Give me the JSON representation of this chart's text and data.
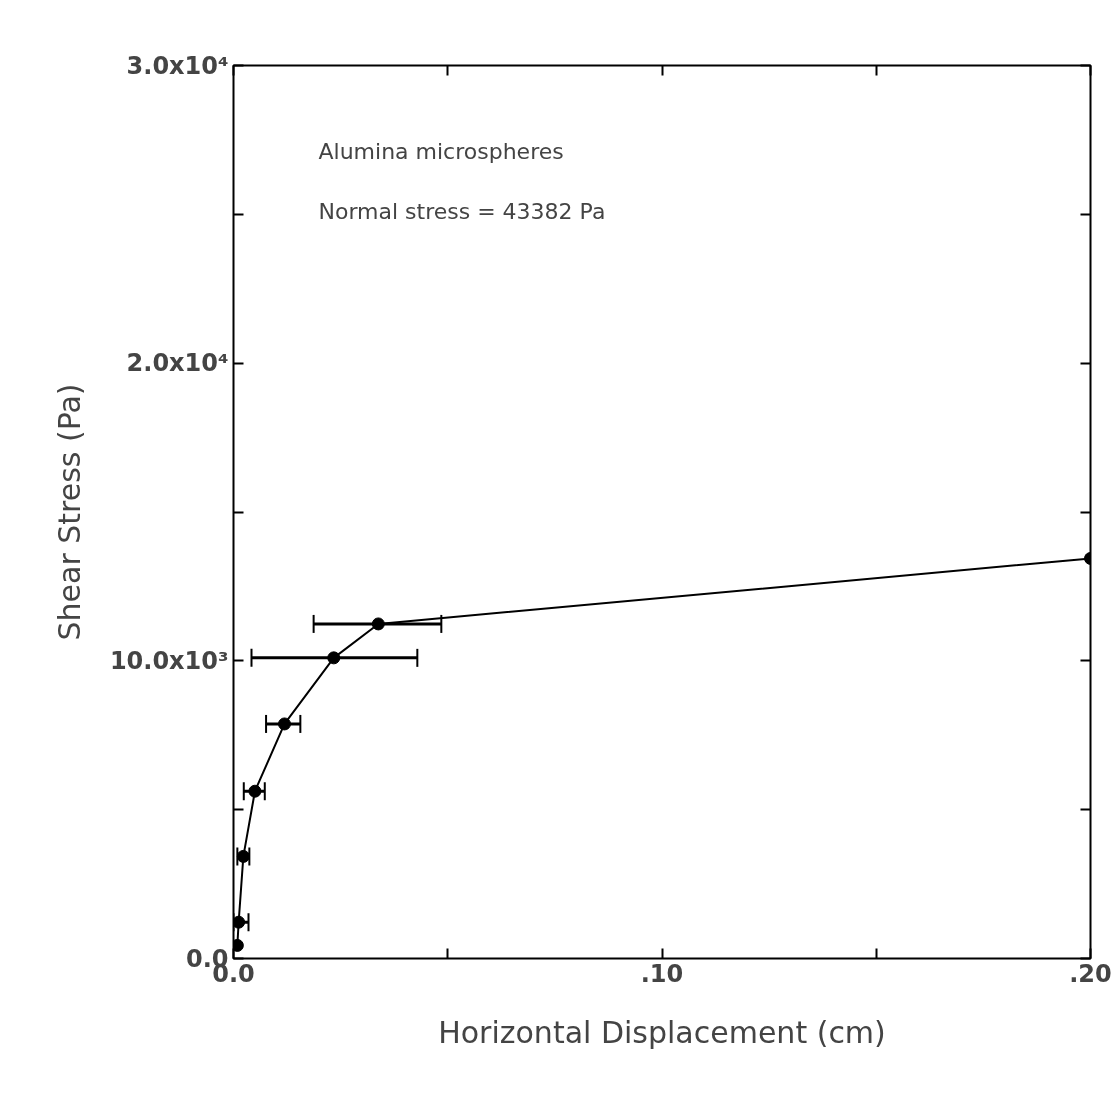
{
  "chart_data": {
    "type": "line",
    "xlabel": "Horizontal Displacement (cm)",
    "ylabel": "Shear Stress (Pa)",
    "annotations": [
      "Alumina microspheres",
      "Normal stress = 43382 Pa"
    ],
    "x": [
      0.0009,
      0.0012,
      0.0023,
      0.005,
      0.0119,
      0.0234,
      0.0338,
      0.2
    ],
    "series": [
      {
        "color": "#000000",
        "values": [
          440,
          1220,
          3430,
          5620,
          7880,
          10100,
          11240,
          13440
        ],
        "xerrors": [
          null,
          [
            0.0,
            0.0035
          ],
          [
            0.0009,
            0.0037
          ],
          [
            0.0024,
            0.0073
          ],
          [
            0.0076,
            0.0156
          ],
          [
            0.0042,
            0.0429
          ],
          [
            0.0187,
            0.0485
          ],
          null
        ]
      }
    ],
    "marker": "circle",
    "line_style": "solid",
    "grid": false,
    "xlim": [
      0,
      0.2
    ],
    "ylim": [
      0,
      30000
    ],
    "xticks": [
      {
        "value": 0,
        "label": "0.0"
      },
      {
        "value": 0.05,
        "label": null
      },
      {
        "value": 0.1,
        "label": ".10"
      },
      {
        "value": 0.15,
        "label": null
      },
      {
        "value": 0.2,
        "label": ".20"
      }
    ],
    "yticks": [
      {
        "value": 0,
        "label": "0.0"
      },
      {
        "value": 5000,
        "label": null
      },
      {
        "value": 10000,
        "label": "10.0x10³"
      },
      {
        "value": 15000,
        "label": null
      },
      {
        "value": 20000,
        "label": "2.0x10⁴"
      },
      {
        "value": 25000,
        "label": null
      },
      {
        "value": 30000,
        "label": "3.0x10⁴"
      }
    ]
  }
}
